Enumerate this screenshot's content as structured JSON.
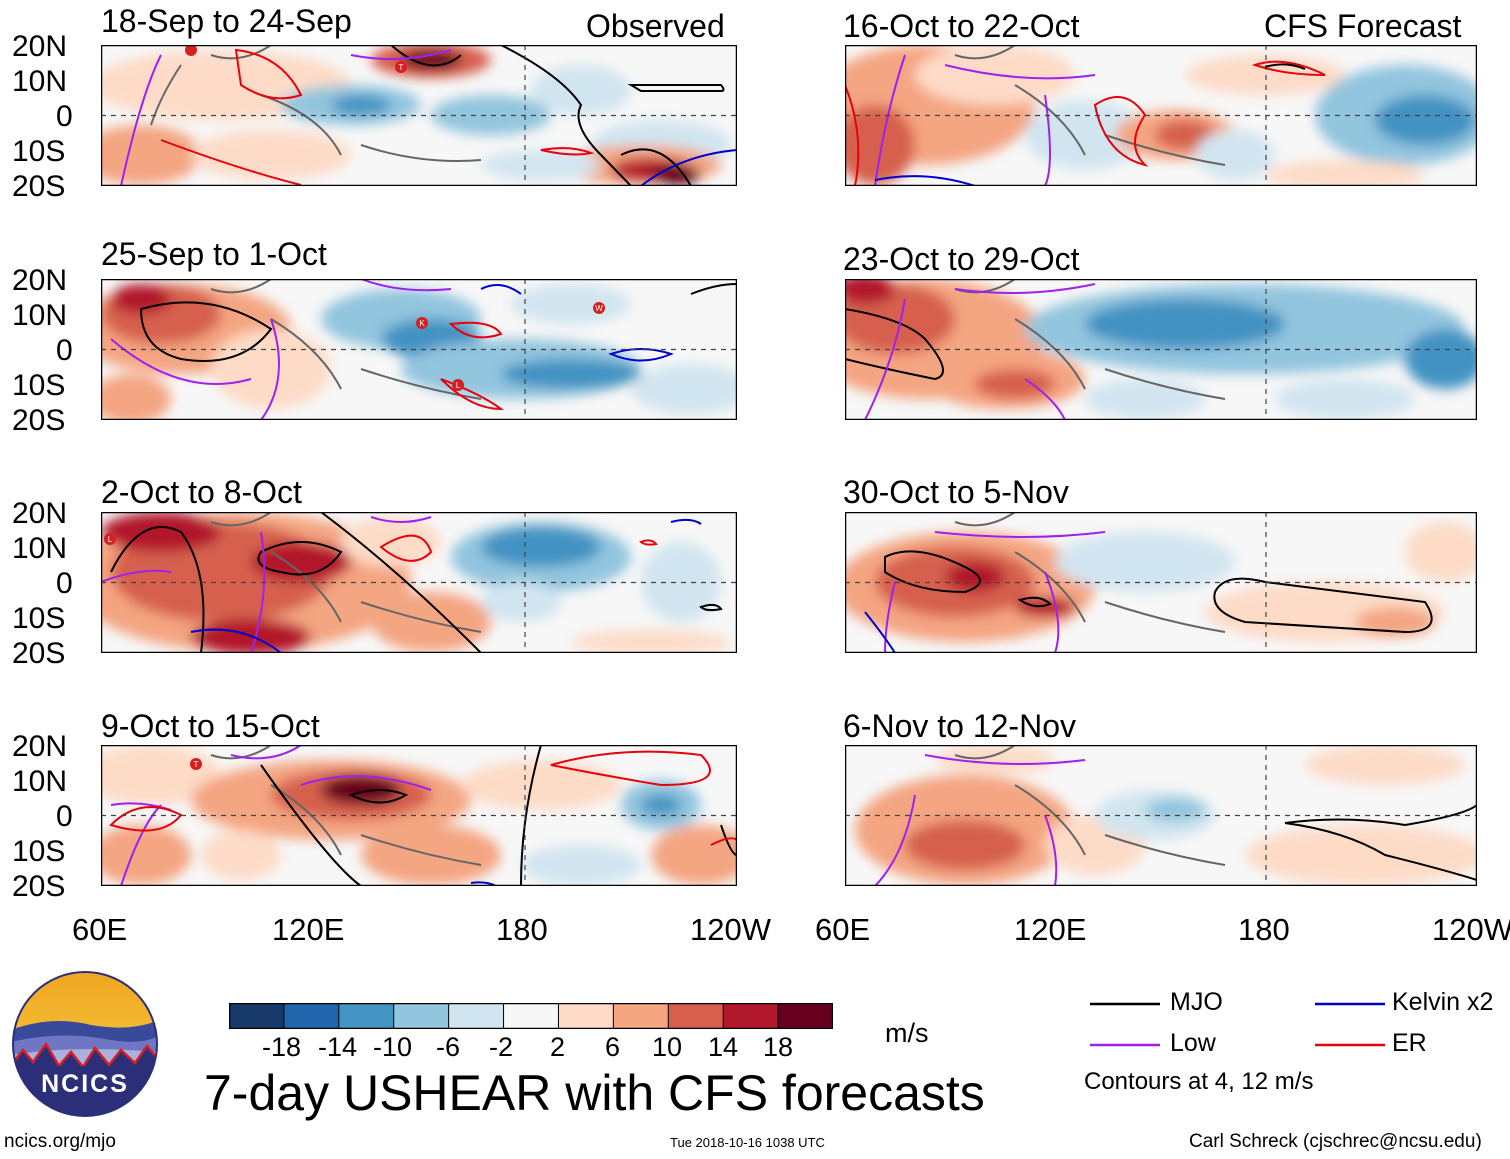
{
  "observed_label": "Observed",
  "forecast_label": "CFS Forecast",
  "lat_labels": [
    "20N",
    "10N",
    "0",
    "10S",
    "20S"
  ],
  "lon_labels": [
    "60E",
    "120E",
    "180",
    "120W"
  ],
  "panels": {
    "p1": {
      "title": "18-Sep to 24-Sep"
    },
    "p2": {
      "title": "25-Sep to 1-Oct"
    },
    "p3": {
      "title": "2-Oct to 8-Oct"
    },
    "p4": {
      "title": "9-Oct to 15-Oct"
    },
    "p5": {
      "title": "16-Oct to 22-Oct"
    },
    "p6": {
      "title": "23-Oct to 29-Oct"
    },
    "p7": {
      "title": "30-Oct to 5-Nov"
    },
    "p8": {
      "title": "6-Nov to 12-Nov"
    }
  },
  "cyclone_markers": {
    "p1": [
      "T",
      "T"
    ],
    "p2": [
      "K",
      "W",
      "L"
    ],
    "p3": [
      "L"
    ],
    "p4": [
      "T"
    ]
  },
  "colorbar": {
    "labels": [
      "-18",
      "-14",
      "-10",
      "-6",
      "-2",
      "2",
      "6",
      "10",
      "14",
      "18"
    ],
    "colors": [
      "#173a6b",
      "#2166ac",
      "#4393c3",
      "#92c5de",
      "#d1e5f0",
      "#f7f7f7",
      "#fddbc7",
      "#f4a582",
      "#d6604d",
      "#b2182b",
      "#67001f"
    ],
    "units": "m/s"
  },
  "legend": {
    "mjo": {
      "label": "MJO",
      "color": "#000000"
    },
    "low": {
      "label": "Low",
      "color": "#a020f0"
    },
    "kelvin": {
      "label": "Kelvin x2",
      "color": "#0000cd"
    },
    "er": {
      "label": "ER",
      "color": "#e8000b"
    },
    "contours_note": "Contours at 4, 12 m/s"
  },
  "logo_text": "NCICS",
  "main_title": "7-day USHEAR with CFS forecasts",
  "website": "ncics.org/mjo",
  "timestamp": "Tue 2018-10-16 1038 UTC",
  "author": "Carl Schreck (cjschrec@ncsu.edu)"
}
